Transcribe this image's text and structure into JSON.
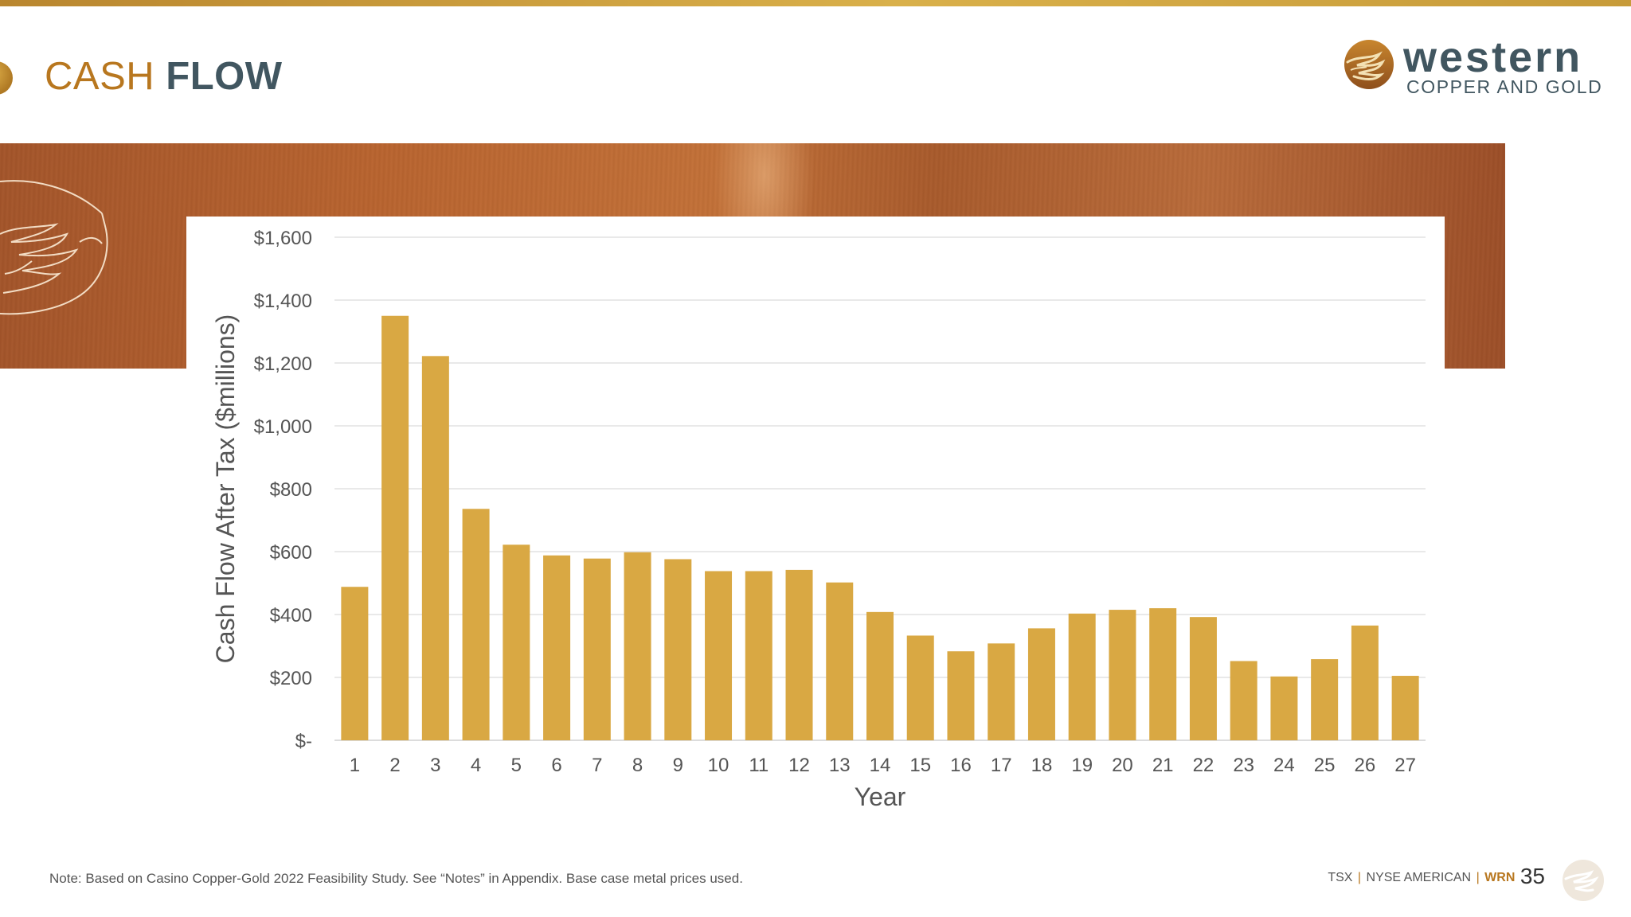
{
  "header": {
    "title_part1": "CASH ",
    "title_part2": "FLOW"
  },
  "brand": {
    "name": "western",
    "tagline": "COPPER AND GOLD",
    "logo_icon": "western-copper-gold-logo-icon"
  },
  "colors": {
    "accent_gold": "#d9a843",
    "title_copper": "#b8771f",
    "title_slate": "#415660",
    "band_copper": "#b3622f"
  },
  "chart_data": {
    "type": "bar",
    "xlabel": "Year",
    "ylabel": "Cash Flow After Tax ($millions)",
    "ylim": [
      0,
      1600
    ],
    "yticks": [
      0,
      200,
      400,
      600,
      800,
      1000,
      1200,
      1400,
      1600
    ],
    "ytick_labels": [
      "$-",
      "$200",
      "$400",
      "$600",
      "$800",
      "$1,000",
      "$1,200",
      "$1,400",
      "$1,600"
    ],
    "categories": [
      "1",
      "2",
      "3",
      "4",
      "5",
      "6",
      "7",
      "8",
      "9",
      "10",
      "11",
      "12",
      "13",
      "14",
      "15",
      "16",
      "17",
      "18",
      "19",
      "20",
      "21",
      "22",
      "23",
      "24",
      "25",
      "26",
      "27"
    ],
    "values": [
      488,
      1350,
      1222,
      736,
      622,
      588,
      578,
      598,
      576,
      538,
      538,
      542,
      502,
      408,
      333,
      283,
      308,
      356,
      403,
      415,
      420,
      392,
      252,
      203,
      258,
      365,
      205
    ],
    "bar_color": "#d9a843",
    "grid": true,
    "legend": "none"
  },
  "footer": {
    "note": "Note: Based on Casino Copper-Gold 2022 Feasibility Study.  See “Notes” in Appendix.  Base case metal prices used.",
    "exchange1": "TSX",
    "exchange2": "NYSE AMERICAN",
    "ticker": "WRN",
    "separator": "|",
    "page_number": "35"
  }
}
